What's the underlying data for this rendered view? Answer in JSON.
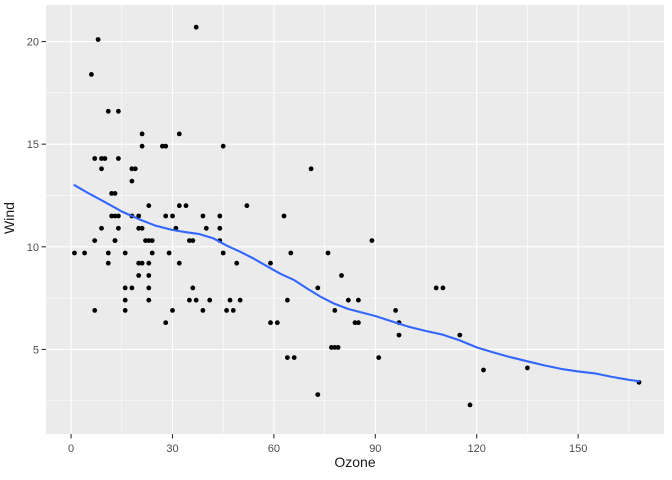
{
  "figure": {
    "kind": "ggplot2-scatterplot-with-smooth",
    "background_color": "#FFFFFF"
  },
  "chart_data": {
    "type": "scatter",
    "title": "",
    "xlabel": "Ozone",
    "ylabel": "Wind",
    "x_ticks": [
      0,
      30,
      60,
      90,
      120,
      150
    ],
    "y_ticks": [
      5,
      10,
      15,
      20
    ],
    "x_minor_gridlines": [
      15,
      45,
      75,
      105,
      135,
      165
    ],
    "y_minor_gridlines": [
      2.5,
      7.5,
      12.5,
      17.5
    ],
    "x_range": [
      -7.42,
      175.4
    ],
    "y_range": [
      0.88,
      21.78
    ],
    "grid": "on",
    "legend": "none",
    "points": [
      [
        41,
        7.4
      ],
      [
        36,
        8
      ],
      [
        12,
        12.6
      ],
      [
        18,
        11.5
      ],
      [
        28,
        14.9
      ],
      [
        23,
        8.6
      ],
      [
        19,
        13.8
      ],
      [
        8,
        20.1
      ],
      [
        7,
        6.9
      ],
      [
        16,
        9.7
      ],
      [
        11,
        9.2
      ],
      [
        14,
        10.9
      ],
      [
        18,
        13.2
      ],
      [
        14,
        11.5
      ],
      [
        34,
        12
      ],
      [
        6,
        18.4
      ],
      [
        30,
        11.5
      ],
      [
        11,
        9.7
      ],
      [
        1,
        9.7
      ],
      [
        11,
        16.6
      ],
      [
        4,
        9.7
      ],
      [
        32,
        12
      ],
      [
        23,
        12
      ],
      [
        45,
        14.9
      ],
      [
        115,
        5.7
      ],
      [
        37,
        7.4
      ],
      [
        29,
        9.7
      ],
      [
        71,
        13.8
      ],
      [
        39,
        11.5
      ],
      [
        23,
        8
      ],
      [
        21,
        14.9
      ],
      [
        37,
        20.7
      ],
      [
        20,
        9.2
      ],
      [
        12,
        11.5
      ],
      [
        13,
        10.3
      ],
      [
        135,
        4.1
      ],
      [
        49,
        9.2
      ],
      [
        32,
        9.2
      ],
      [
        64,
        4.6
      ],
      [
        40,
        10.9
      ],
      [
        77,
        5.1
      ],
      [
        97,
        6.3
      ],
      [
        97,
        5.7
      ],
      [
        85,
        7.4
      ],
      [
        10,
        14.3
      ],
      [
        27,
        14.9
      ],
      [
        7,
        14.3
      ],
      [
        48,
        6.9
      ],
      [
        35,
        10.3
      ],
      [
        61,
        6.3
      ],
      [
        79,
        5.1
      ],
      [
        63,
        11.5
      ],
      [
        16,
        6.9
      ],
      [
        80,
        8.6
      ],
      [
        108,
        8
      ],
      [
        20,
        8.6
      ],
      [
        52,
        12
      ],
      [
        82,
        7.4
      ],
      [
        50,
        7.4
      ],
      [
        64,
        7.4
      ],
      [
        59,
        9.2
      ],
      [
        39,
        6.9
      ],
      [
        9,
        13.8
      ],
      [
        16,
        7.4
      ],
      [
        78,
        6.9
      ],
      [
        35,
        7.4
      ],
      [
        66,
        4.6
      ],
      [
        122,
        4
      ],
      [
        89,
        10.3
      ],
      [
        110,
        8
      ],
      [
        44,
        11.5
      ],
      [
        28,
        11.5
      ],
      [
        65,
        9.7
      ],
      [
        22,
        10.3
      ],
      [
        59,
        6.3
      ],
      [
        23,
        7.4
      ],
      [
        31,
        10.9
      ],
      [
        44,
        10.3
      ],
      [
        21,
        15.5
      ],
      [
        9,
        14.3
      ],
      [
        45,
        9.7
      ],
      [
        168,
        3.4
      ],
      [
        73,
        8
      ],
      [
        76,
        9.7
      ],
      [
        118,
        2.3
      ],
      [
        84,
        6.3
      ],
      [
        85,
        6.3
      ],
      [
        96,
        6.9
      ],
      [
        78,
        5.1
      ],
      [
        73,
        2.8
      ],
      [
        91,
        4.6
      ],
      [
        47,
        7.4
      ],
      [
        32,
        15.5
      ],
      [
        20,
        10.9
      ],
      [
        23,
        10.3
      ],
      [
        21,
        10.9
      ],
      [
        24,
        9.7
      ],
      [
        44,
        10.9
      ],
      [
        21,
        9.2
      ],
      [
        28,
        6.3
      ],
      [
        9,
        10.9
      ],
      [
        13,
        11.5
      ],
      [
        46,
        6.9
      ],
      [
        18,
        13.8
      ],
      [
        13,
        10.3
      ],
      [
        24,
        10.3
      ],
      [
        16,
        8
      ],
      [
        13,
        12.6
      ],
      [
        23,
        9.2
      ],
      [
        36,
        10.3
      ],
      [
        7,
        10.3
      ],
      [
        14,
        16.6
      ],
      [
        30,
        6.9
      ],
      [
        14,
        14.3
      ],
      [
        18,
        8
      ],
      [
        20,
        11.5
      ]
    ],
    "smooth_line": {
      "method": "loess",
      "points": [
        [
          1,
          13.0
        ],
        [
          5,
          12.62
        ],
        [
          10,
          12.18
        ],
        [
          15,
          11.72
        ],
        [
          20,
          11.35
        ],
        [
          25,
          11.03
        ],
        [
          30,
          10.82
        ],
        [
          34,
          10.71
        ],
        [
          38,
          10.62
        ],
        [
          42,
          10.42
        ],
        [
          46,
          10.06
        ],
        [
          50,
          9.76
        ],
        [
          54,
          9.43
        ],
        [
          58,
          9.05
        ],
        [
          62,
          8.68
        ],
        [
          66,
          8.38
        ],
        [
          70,
          7.95
        ],
        [
          74,
          7.55
        ],
        [
          78,
          7.22
        ],
        [
          82,
          6.97
        ],
        [
          86,
          6.8
        ],
        [
          90,
          6.63
        ],
        [
          95,
          6.36
        ],
        [
          100,
          6.1
        ],
        [
          105,
          5.9
        ],
        [
          110,
          5.72
        ],
        [
          115,
          5.44
        ],
        [
          120,
          5.1
        ],
        [
          125,
          4.85
        ],
        [
          130,
          4.62
        ],
        [
          135,
          4.42
        ],
        [
          140,
          4.22
        ],
        [
          145,
          4.05
        ],
        [
          150,
          3.93
        ],
        [
          155,
          3.83
        ],
        [
          160,
          3.66
        ],
        [
          165,
          3.52
        ],
        [
          168,
          3.45
        ]
      ]
    },
    "colors": {
      "panel_background": "#EBEBEB",
      "gridline": "#FFFFFF",
      "point": "#000000",
      "smooth_line": "#3366FF",
      "tick_label_text": "#4D4D4D",
      "axis_title_text": "#1A1A1A",
      "tick_mark": "#333333"
    }
  }
}
